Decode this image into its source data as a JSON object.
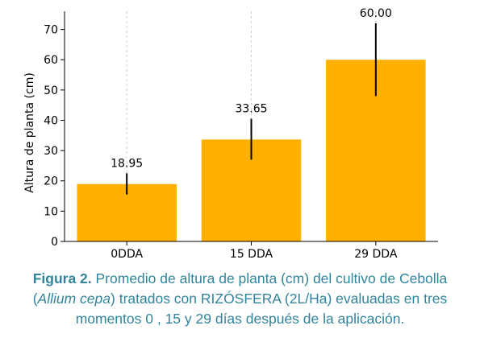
{
  "chart_data": {
    "type": "bar",
    "title": "",
    "xlabel": "",
    "ylabel": "Altura de planta (cm)",
    "categories": [
      "0DDA",
      "15 DDA",
      "29 DDA"
    ],
    "series": [
      {
        "values": [
          18.95,
          33.65,
          60.0
        ],
        "value_labels": [
          "18.95",
          "33.65",
          "60.00"
        ],
        "error_low": [
          15.5,
          27.0,
          48.0
        ],
        "error_high": [
          22.5,
          40.5,
          72.0
        ],
        "color": "#ffb000"
      }
    ],
    "ylim": [
      0,
      76
    ],
    "yticks": [
      0,
      10,
      20,
      30,
      40,
      50,
      60,
      70
    ],
    "grid": "vertical dashed",
    "legend": "none"
  },
  "caption": {
    "label": "Figura 2.",
    "text_1": " Promedio de altura de planta (cm)  del cultivo de Cebolla (",
    "species": "Allium cepa",
    "text_2": ") tratados con  RIZÓSFERA (2L/Ha)  evaluadas en tres momentos 0 , 15 y 29 días después de la aplicación."
  },
  "colors": {
    "bar": "#ffb000",
    "caption": "#31849b"
  }
}
